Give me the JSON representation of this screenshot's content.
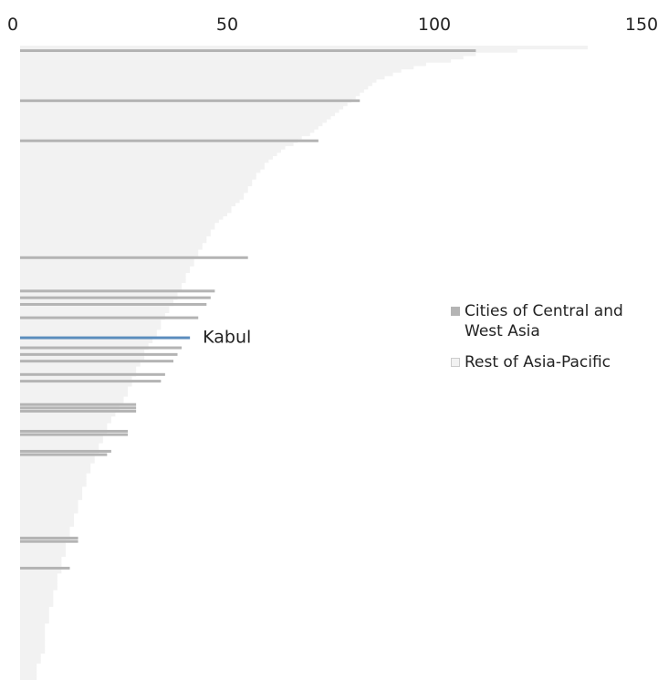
{
  "chart_data": {
    "type": "bar",
    "orientation": "horizontal",
    "title": "",
    "xlabel": "",
    "ylabel": "",
    "xlim": [
      0,
      150
    ],
    "x_ticks": [
      "0",
      "50",
      "100",
      "150"
    ],
    "grid": false,
    "legend_position": "right",
    "series": [
      {
        "name": "Cities of Central and West Asia",
        "color": "#b4b4b4"
      },
      {
        "name": "Rest of Asia-Pacific",
        "color": "#f2f2f2"
      }
    ],
    "highlight": {
      "label": "Kabul",
      "color": "#5b8dbd",
      "value": 41
    },
    "values": [
      137,
      120,
      110,
      107,
      104,
      98,
      95,
      92,
      90,
      88,
      86,
      85,
      84,
      83,
      82,
      81,
      80,
      79,
      78,
      77,
      76,
      75,
      74,
      73,
      72,
      71,
      70,
      68,
      67,
      66,
      64,
      63,
      62,
      61,
      60,
      59,
      59,
      58,
      57,
      57,
      56,
      56,
      55,
      55,
      54,
      54,
      53,
      52,
      51,
      51,
      50,
      49,
      48,
      47,
      47,
      46,
      46,
      45,
      45,
      44,
      44,
      43,
      43,
      42,
      42,
      42,
      41,
      41,
      40,
      40,
      40,
      39,
      39,
      38,
      38,
      38,
      37,
      37,
      36,
      36,
      35,
      35,
      34,
      34,
      34,
      33,
      33,
      32,
      32,
      31,
      31,
      30,
      30,
      30,
      29,
      29,
      28,
      28,
      28,
      27,
      27,
      27,
      26,
      26,
      26,
      25,
      25,
      24,
      24,
      23,
      23,
      22,
      22,
      21,
      21,
      21,
      20,
      20,
      20,
      19,
      19,
      19,
      18,
      18,
      18,
      17,
      17,
      17,
      16,
      16,
      16,
      16,
      15,
      15,
      15,
      15,
      14,
      14,
      14,
      14,
      13,
      13,
      13,
      13,
      12,
      12,
      12,
      12,
      11,
      11,
      11,
      11,
      11,
      10,
      10,
      10,
      10,
      10,
      9,
      9,
      9,
      9,
      9,
      8,
      8,
      8,
      8,
      8,
      7,
      7,
      7,
      7,
      7,
      6,
      6,
      6,
      6,
      6,
      6,
      6,
      6,
      6,
      5,
      5,
      5,
      4,
      4,
      4,
      4,
      4
    ],
    "central_west_asia": [
      {
        "value": 110,
        "rank": 2
      },
      {
        "value": 82,
        "rank": 17
      },
      {
        "value": 72,
        "rank": 29
      },
      {
        "value": 55,
        "rank": 64
      },
      {
        "value": 47,
        "rank": 74
      },
      {
        "value": 46,
        "rank": 76
      },
      {
        "value": 45,
        "rank": 78
      },
      {
        "value": 43,
        "rank": 82
      },
      {
        "value": 41,
        "rank": 88,
        "label": "Kabul"
      },
      {
        "value": 39,
        "rank": 91
      },
      {
        "value": 38,
        "rank": 93
      },
      {
        "value": 37,
        "rank": 95
      },
      {
        "value": 35,
        "rank": 99
      },
      {
        "value": 34,
        "rank": 101
      },
      {
        "value": 28,
        "rank": 108
      },
      {
        "value": 28,
        "rank": 109
      },
      {
        "value": 28,
        "rank": 110
      },
      {
        "value": 26,
        "rank": 116
      },
      {
        "value": 26,
        "rank": 117
      },
      {
        "value": 22,
        "rank": 122
      },
      {
        "value": 21,
        "rank": 123
      },
      {
        "value": 14,
        "rank": 148
      },
      {
        "value": 14,
        "rank": 149
      },
      {
        "value": 12,
        "rank": 157
      }
    ]
  }
}
